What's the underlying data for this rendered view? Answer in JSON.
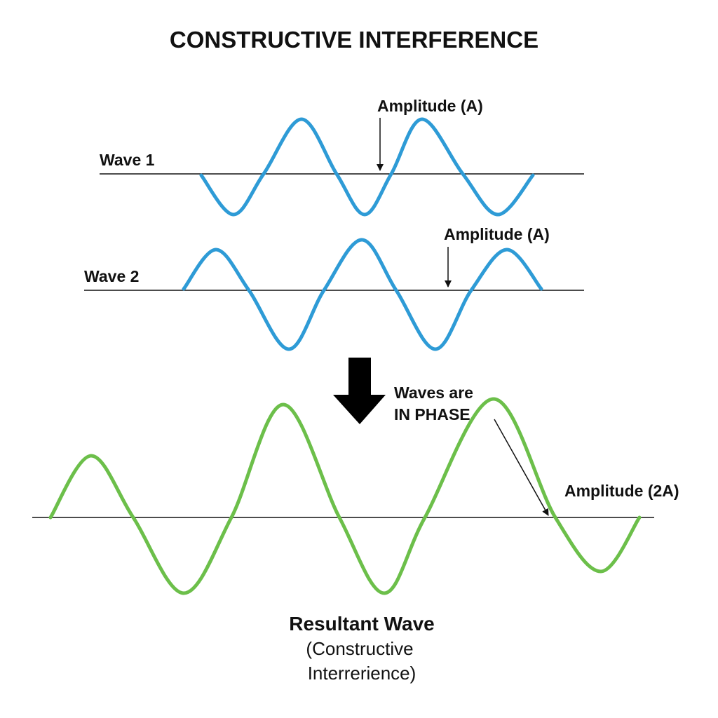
{
  "title": "CONSTRUCTIVE INTERFERENCE",
  "wave1": {
    "label": "Wave 1",
    "amplitude_label": "Amplitude (A)",
    "color": "#2e9bd6"
  },
  "wave2": {
    "label": "Wave 2",
    "amplitude_label": "Amplitude (A)",
    "color": "#2e9bd6"
  },
  "phase_note": {
    "line1": "Waves are",
    "line2": "IN PHASE"
  },
  "resultant": {
    "amplitude_label": "Amplitude (2A)",
    "caption_line1": "Resultant Wave",
    "caption_line2": "(Constructive",
    "caption_line3": "Interrerience)",
    "color": "#6cbf4a"
  },
  "arrow_color": "#000000"
}
